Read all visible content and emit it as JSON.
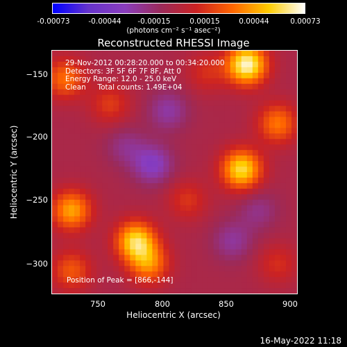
{
  "colorbar": {
    "ticks": [
      "-0.00073",
      "-0.00044",
      "-0.00015",
      "0.00015",
      "0.00044",
      "0.00073"
    ],
    "unit_label": "(photons cm⁻² s⁻¹ asec⁻²)",
    "colormap": [
      "#0000ff",
      "#6633cc",
      "#8a3dbd",
      "#9b2a5a",
      "#cc2222",
      "#ff6600",
      "#ffcc00",
      "#ffffff"
    ]
  },
  "chart_data": {
    "type": "heatmap",
    "title": "Reconstructed RHESSI Image",
    "xlabel": "Heliocentric X (arcsec)",
    "ylabel": "Heliocentric Y (arcsec)",
    "x_ticks": [
      "750",
      "800",
      "850",
      "900"
    ],
    "y_ticks": [
      "−150",
      "−200",
      "−250",
      "−300"
    ],
    "xlim": [
      715,
      905
    ],
    "ylim": [
      -323,
      -133
    ],
    "annotations": [
      "29-Nov-2012 00:28:20.000 to 00:34:20.000",
      "Detectors: 3F 5F 6F 7F 8F, Att 0",
      "Energy Range: 12.0 - 25.0 keV",
      "Clean     Total counts: 1.49E+04"
    ],
    "peak_label": "Position of Peak = [866,-144]",
    "peak": [
      866,
      -144
    ],
    "clim": [
      -0.00073,
      0.00073
    ],
    "sources": [
      {
        "x": 866,
        "y": -144,
        "v": 0.00073
      },
      {
        "x": 862,
        "y": -226,
        "v": 0.00062
      },
      {
        "x": 780,
        "y": -282,
        "v": 0.0006
      },
      {
        "x": 730,
        "y": -258,
        "v": 0.00048
      },
      {
        "x": 790,
        "y": -300,
        "v": 0.0004
      },
      {
        "x": 890,
        "y": -190,
        "v": 0.00038
      },
      {
        "x": 725,
        "y": -155,
        "v": 0.00036
      },
      {
        "x": 760,
        "y": -175,
        "v": 0.00022
      },
      {
        "x": 820,
        "y": -250,
        "v": 0.0002
      },
      {
        "x": 835,
        "y": -150,
        "v": 0.00018
      },
      {
        "x": 890,
        "y": -300,
        "v": 0.00018
      },
      {
        "x": 730,
        "y": -305,
        "v": 0.0003
      },
      {
        "x": 793,
        "y": -222,
        "v": -0.0003
      },
      {
        "x": 805,
        "y": -180,
        "v": -0.00022
      },
      {
        "x": 855,
        "y": -282,
        "v": -0.0002
      },
      {
        "x": 772,
        "y": -208,
        "v": -0.00016
      },
      {
        "x": 875,
        "y": -258,
        "v": -0.00016
      }
    ]
  },
  "timestamp": "16-May-2022 11:18"
}
